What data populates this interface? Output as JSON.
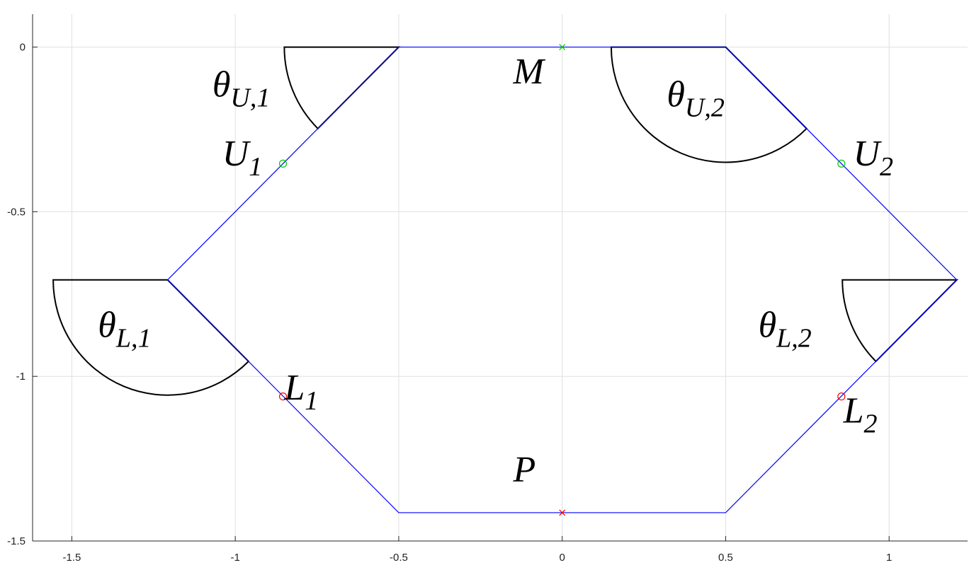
{
  "chart_data": {
    "type": "line",
    "title": "",
    "xlabel": "",
    "ylabel": "",
    "xlim": [
      -1.62,
      1.24
    ],
    "ylim": [
      -1.5,
      0.1
    ],
    "grid": true,
    "x_ticks": [
      -1.5,
      -1,
      -0.5,
      0,
      0.5,
      1
    ],
    "x_tick_labels": [
      "-1.5",
      "-1",
      "-0.5",
      "0",
      "0.5",
      "1"
    ],
    "y_ticks": [
      0,
      -0.5,
      -1,
      -1.5
    ],
    "y_tick_labels": [
      "0",
      "-0.5",
      "-1",
      "-1.5"
    ],
    "colors": {
      "outline": "#0000ff",
      "arc": "#000000",
      "upper_marker": "#00cc00",
      "lower_marker": "#ff0000",
      "grid": "#e0e0e0",
      "axis": "#262626"
    },
    "series": [
      {
        "kind": "polygon",
        "color": "#0000ff",
        "x": [
          -0.5,
          0.5,
          1.207,
          0.5,
          -0.5,
          -1.207,
          -0.5
        ],
        "y": [
          0,
          0,
          -0.707,
          -1.414,
          -1.414,
          -0.707,
          0
        ]
      }
    ],
    "markers": [
      {
        "id": "M",
        "x": 0,
        "y": 0,
        "symbol": "x",
        "color": "#00cc00"
      },
      {
        "id": "P",
        "x": 0,
        "y": -1.414,
        "symbol": "x",
        "color": "#ff0000"
      },
      {
        "id": "U1",
        "x": -0.854,
        "y": -0.354,
        "symbol": "o",
        "color": "#00cc00"
      },
      {
        "id": "U2",
        "x": 0.854,
        "y": -0.354,
        "symbol": "o",
        "color": "#00cc00"
      },
      {
        "id": "L1",
        "x": -0.854,
        "y": -1.061,
        "symbol": "o",
        "color": "#ff0000"
      },
      {
        "id": "L2",
        "x": 0.854,
        "y": -1.061,
        "symbol": "o",
        "color": "#ff0000"
      }
    ],
    "arcs": [
      {
        "id": "thetaU1",
        "cx": -0.5,
        "cy": 0,
        "r": 0.35,
        "from_deg": 180,
        "to_deg": 225
      },
      {
        "id": "thetaU2",
        "cx": 0.5,
        "cy": 0,
        "r": 0.35,
        "from_deg": 180,
        "to_deg": 315
      },
      {
        "id": "thetaL1",
        "cx": -1.207,
        "cy": -0.707,
        "r": 0.35,
        "from_deg": 180,
        "to_deg": 315
      },
      {
        "id": "thetaL2",
        "cx": 1.207,
        "cy": -0.707,
        "r": 0.35,
        "from_deg": 180,
        "to_deg": 225
      }
    ],
    "annotations": [
      {
        "id": "M",
        "base": "M",
        "sub": "",
        "x": -0.15,
        "y": -0.11
      },
      {
        "id": "P",
        "base": "P",
        "sub": "",
        "x": -0.15,
        "y": -1.32
      },
      {
        "id": "U1",
        "base": "U",
        "sub": "1",
        "x": -1.04,
        "y": -0.36
      },
      {
        "id": "U2",
        "base": "U",
        "sub": "2",
        "x": 0.89,
        "y": -0.36
      },
      {
        "id": "L1",
        "base": "L",
        "sub": "1",
        "x": -0.85,
        "y": -1.07
      },
      {
        "id": "L2",
        "base": "L",
        "sub": "2",
        "x": 0.86,
        "y": -1.14
      },
      {
        "id": "thetaU1",
        "base": "θ",
        "sub": "U,1",
        "x": -1.07,
        "y": -0.15
      },
      {
        "id": "thetaU2",
        "base": "θ",
        "sub": "U,2",
        "x": 0.32,
        "y": -0.18
      },
      {
        "id": "thetaL1",
        "base": "θ",
        "sub": "L,1",
        "x": -1.42,
        "y": -0.88
      },
      {
        "id": "thetaL2",
        "base": "θ",
        "sub": "L,2",
        "x": 0.6,
        "y": -0.88
      }
    ]
  }
}
